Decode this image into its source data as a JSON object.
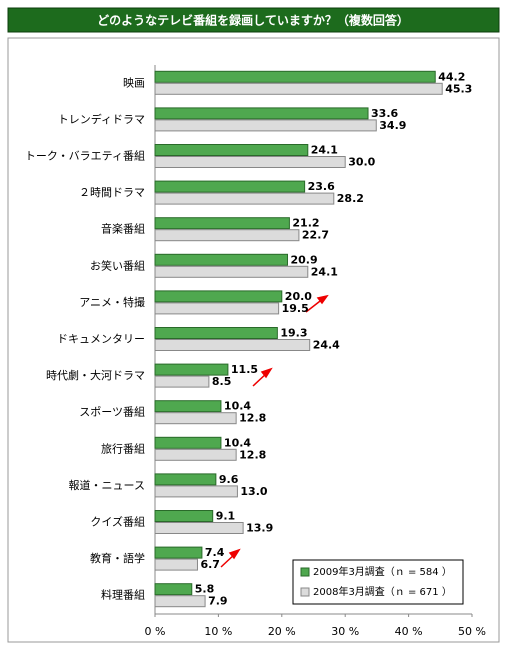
{
  "chart_data": {
    "type": "bar",
    "orientation": "horizontal",
    "title": "どのようなテレビ番組を録画していますか？（複数回答）",
    "categories": [
      "映画",
      "トレンディドラマ",
      "トーク・バラエティ番組",
      "２時間ドラマ",
      "音楽番組",
      "お笑い番組",
      "アニメ・特撮",
      "ドキュメンタリー",
      "時代劇・大河ドラマ",
      "スポーツ番組",
      "旅行番組",
      "報道・ニュース",
      "クイズ番組",
      "教育・語学",
      "料理番組"
    ],
    "series": [
      {
        "name": "2009年3月調査（ｎ = 584 ）",
        "color": "#4fa84f",
        "values": [
          44.2,
          33.6,
          24.1,
          23.6,
          21.2,
          20.9,
          20.0,
          19.3,
          11.5,
          10.4,
          10.4,
          9.6,
          9.1,
          7.4,
          5.8
        ],
        "value_labels": [
          "44.2",
          "33.6",
          "24.1",
          "23.6",
          "21.2",
          "20.9",
          "20.0",
          "19.3",
          "11.5",
          "10.4",
          "10.4",
          "9.6",
          "9.1",
          "7.4",
          "5.8"
        ]
      },
      {
        "name": "2008年3月調査（ｎ = 671 ）",
        "color": "#dcdcdc",
        "values": [
          45.3,
          34.9,
          30.0,
          28.2,
          22.7,
          24.1,
          19.5,
          24.4,
          8.5,
          12.8,
          12.8,
          13.0,
          13.9,
          6.7,
          7.9
        ],
        "value_labels": [
          "45.3",
          "34.9",
          "30.0",
          "28.2",
          "22.7",
          "24.1",
          "19.5",
          "24.4",
          "8.5",
          "12.8",
          "12.8",
          "13.0",
          "13.9",
          "6.7",
          "7.9"
        ]
      }
    ],
    "xlim": [
      0,
      50
    ],
    "xticks": [
      {
        "value": 0,
        "label": "0 %"
      },
      {
        "value": 10,
        "label": "10 %"
      },
      {
        "value": 20,
        "label": "20 %"
      },
      {
        "value": 30,
        "label": "30 %"
      },
      {
        "value": 40,
        "label": "40 %"
      },
      {
        "value": 50,
        "label": "50 %"
      }
    ],
    "grid": false,
    "legend": "lower right"
  }
}
